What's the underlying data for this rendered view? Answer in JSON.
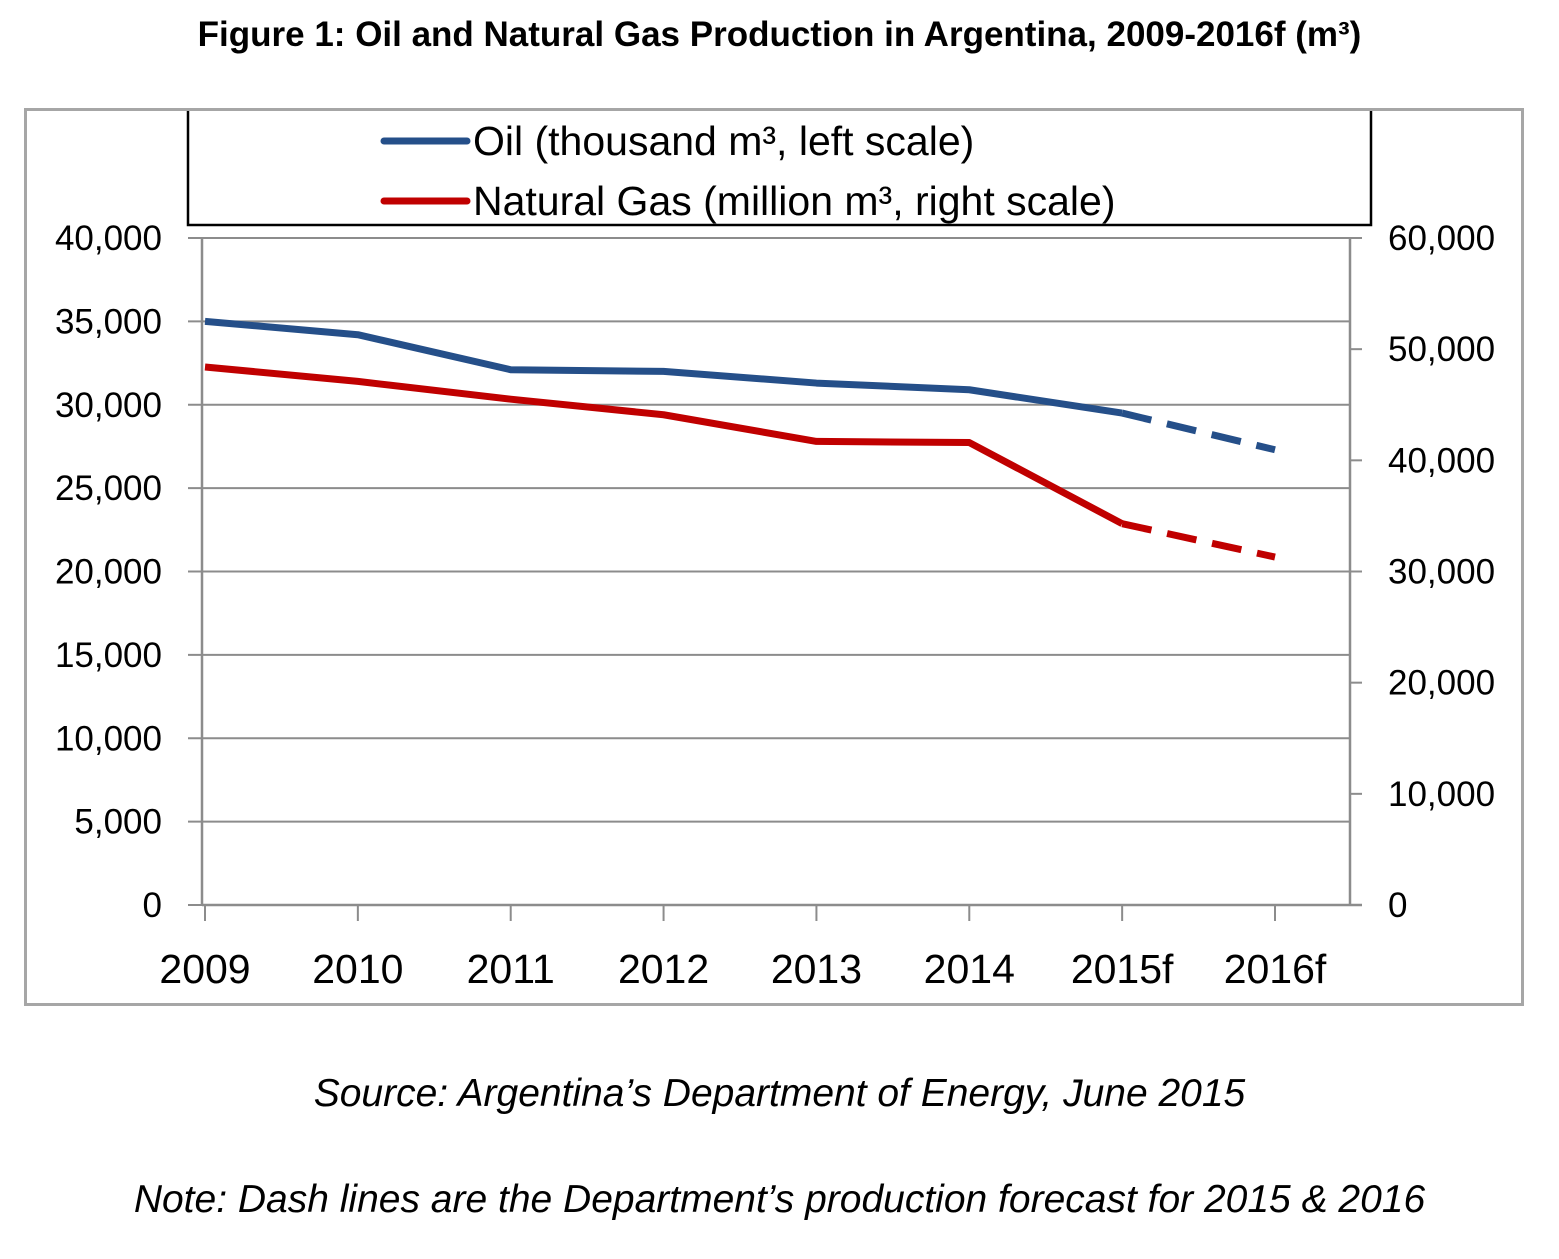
{
  "figure": {
    "title": "Figure 1: Oil and Natural Gas Production in Argentina, 2009-2016f (m³)",
    "source": "Source: Argentina’s Department of Energy, June 2015",
    "note": "Note: Dash lines are the Department’s production forecast for 2015 & 2016"
  },
  "chart_data": {
    "type": "line",
    "title": "Figure 1: Oil and Natural Gas Production in Argentina, 2009-2016f (m³)",
    "categories": [
      "2009",
      "2010",
      "2011",
      "2012",
      "2013",
      "2014",
      "2015f",
      "2016f"
    ],
    "forecast_start_index": 6,
    "y_left": {
      "min": 0,
      "max": 40000,
      "step": 5000,
      "tick_labels": [
        "0",
        "5,000",
        "10,000",
        "15,000",
        "20,000",
        "25,000",
        "30,000",
        "35,000",
        "40,000"
      ]
    },
    "y_right": {
      "min": 0,
      "max": 60000,
      "step": 10000,
      "tick_labels": [
        "0",
        "10,000",
        "20,000",
        "30,000",
        "40,000",
        "50,000",
        "60,000"
      ]
    },
    "grid": true,
    "legend_position": "top-center",
    "series": [
      {
        "name": "Oil (thousand m³, left scale)",
        "axis": "left",
        "color": "#254f89",
        "values": [
          35000,
          34200,
          32100,
          32000,
          31300,
          30900,
          29500,
          27300
        ]
      },
      {
        "name": "Natural Gas (million m³, right scale)",
        "axis": "right",
        "color": "#c00000",
        "values": [
          48400,
          47100,
          45500,
          44100,
          41700,
          41600,
          34300,
          31300
        ]
      }
    ]
  }
}
